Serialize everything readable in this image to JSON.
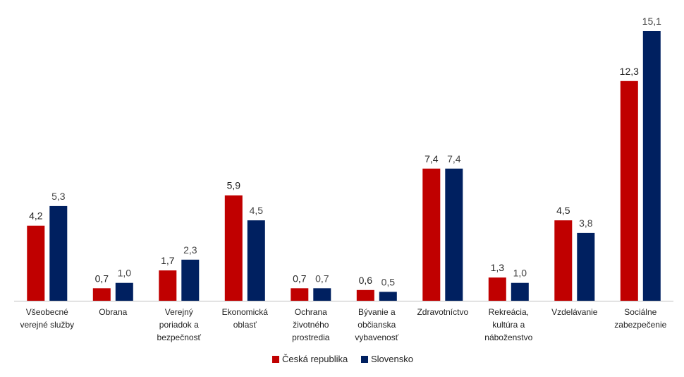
{
  "chart_data": {
    "type": "bar",
    "title": "",
    "xlabel": "",
    "ylabel": "",
    "categories": [
      [
        "Všeobecné",
        "verejné služby"
      ],
      [
        "Obrana"
      ],
      [
        "Verejný",
        "poriadok a",
        "bezpečnosť"
      ],
      [
        "Ekonomická",
        "oblasť"
      ],
      [
        "Ochrana",
        "životného",
        "prostredia"
      ],
      [
        "Bývanie a",
        "občianska",
        "vybavenosť"
      ],
      [
        "Zdravotníctvo"
      ],
      [
        "Rekreácia,",
        "kultúra a",
        "náboženstvo"
      ],
      [
        "Vzdelávanie"
      ],
      [
        "Sociálne",
        "zabezpečenie"
      ]
    ],
    "series": [
      {
        "name": "Česká republika",
        "color": "#C00000",
        "values": [
          4.2,
          0.7,
          1.7,
          5.9,
          0.7,
          0.6,
          7.4,
          1.3,
          4.5,
          12.3
        ],
        "labels": [
          "4,2",
          "0,7",
          "1,7",
          "5,9",
          "0,7",
          "0,6",
          "7,4",
          "1,3",
          "4,5",
          "12,3"
        ]
      },
      {
        "name": "Slovensko",
        "color": "#002060",
        "values": [
          5.3,
          1.0,
          2.3,
          4.5,
          0.7,
          0.5,
          7.4,
          1.0,
          3.8,
          15.1
        ],
        "labels": [
          "5,3",
          "1,0",
          "2,3",
          "4,5",
          "0,7",
          "0,5",
          "7,4",
          "1,0",
          "3,8",
          "15,1"
        ]
      }
    ],
    "ylim": [
      0,
      16
    ],
    "grid": false,
    "legend": "bottom-center"
  }
}
